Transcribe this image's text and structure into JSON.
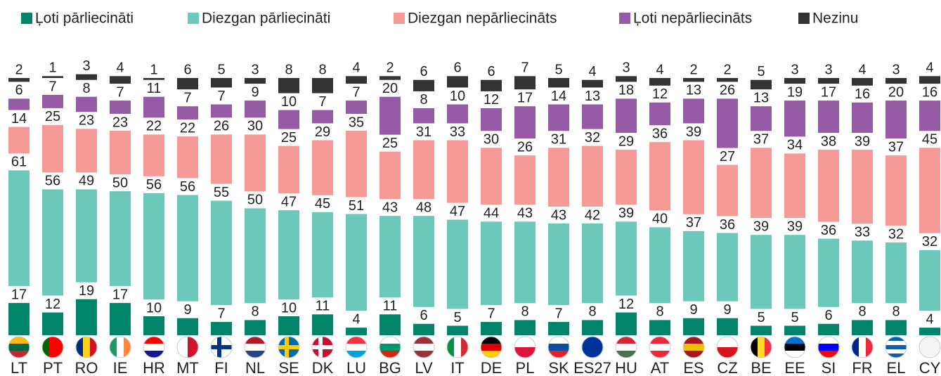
{
  "chart_data": {
    "type": "stacked-bar",
    "categories": [
      "LT",
      "PT",
      "RO",
      "IE",
      "HR",
      "MT",
      "FI",
      "NL",
      "SE",
      "DK",
      "LU",
      "BG",
      "LV",
      "IT",
      "DE",
      "PL",
      "SK",
      "ES27",
      "HU",
      "AT",
      "ES",
      "CZ",
      "BE",
      "EE",
      "SI",
      "FR",
      "EL",
      "CY"
    ],
    "series": [
      {
        "name": "Ļoti pārliecināti",
        "color": "#00856a",
        "values": [
          17,
          12,
          19,
          17,
          10,
          9,
          7,
          8,
          10,
          11,
          4,
          11,
          6,
          5,
          7,
          8,
          7,
          8,
          12,
          8,
          9,
          9,
          5,
          5,
          6,
          8,
          8,
          4
        ]
      },
      {
        "name": "Diezgan pārliecināti",
        "color": "#6cc8b8",
        "values": [
          61,
          56,
          49,
          50,
          56,
          56,
          55,
          50,
          47,
          45,
          51,
          43,
          48,
          47,
          44,
          43,
          43,
          42,
          39,
          40,
          37,
          36,
          39,
          39,
          36,
          33,
          32,
          32
        ]
      },
      {
        "name": "Diezgan nepārliecināts",
        "color": "#f59a96",
        "values": [
          14,
          25,
          23,
          23,
          22,
          22,
          26,
          30,
          25,
          29,
          35,
          25,
          31,
          33,
          30,
          26,
          31,
          32,
          29,
          36,
          39,
          27,
          37,
          34,
          38,
          39,
          37,
          45
        ]
      },
      {
        "name": "Ļoti nepārliecināts",
        "color": "#955ba5",
        "values": [
          6,
          7,
          8,
          7,
          11,
          7,
          7,
          9,
          10,
          7,
          7,
          20,
          8,
          10,
          12,
          17,
          14,
          13,
          18,
          12,
          13,
          26,
          13,
          19,
          17,
          16,
          20,
          16
        ]
      },
      {
        "name": "Nezinu",
        "color": "#333333",
        "values": [
          2,
          1,
          3,
          4,
          1,
          6,
          5,
          3,
          8,
          8,
          4,
          2,
          6,
          6,
          6,
          7,
          5,
          4,
          3,
          4,
          2,
          2,
          5,
          3,
          3,
          4,
          3,
          4
        ]
      }
    ]
  }
}
